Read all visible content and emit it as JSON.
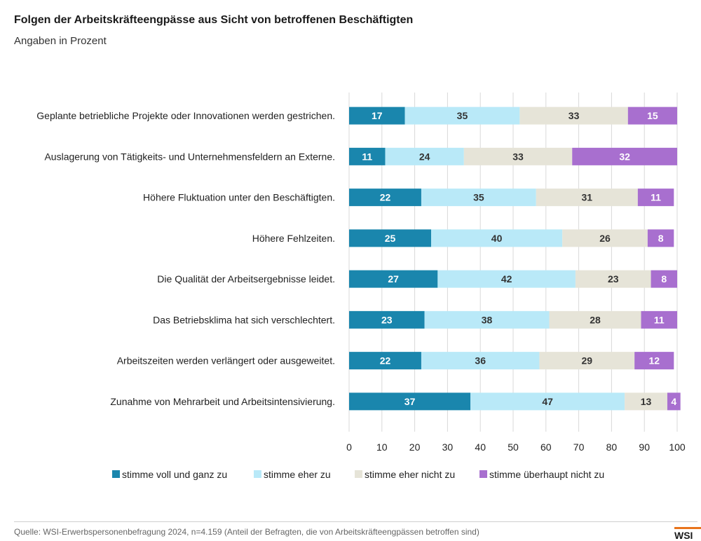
{
  "header": {
    "title": "Folgen der Arbeitskräfteengpässe aus Sicht von betroffenen Beschäftigten",
    "subtitle": "Angaben in Prozent"
  },
  "footer": {
    "source": "Quelle: WSI-Erwerbspersonenbefragung 2024, n=4.159 (Anteil der Befragten, die von Arbeitskräfteengpässen betroffen sind)",
    "logo_text": "WSI"
  },
  "colors": {
    "logo_accent": "#e8741c"
  },
  "chart_data": {
    "type": "bar",
    "orientation": "horizontal",
    "stacked": true,
    "title": "Folgen der Arbeitskräfteengpässe aus Sicht von betroffenen Beschäftigten",
    "subtitle": "Angaben in Prozent",
    "categories": [
      "Geplante betriebliche Projekte oder Innovationen werden gestrichen.",
      "Auslagerung von Tätigkeits- und Unternehmensfeldern an Externe.",
      "Höhere Fluktuation unter den Beschäftigten.",
      "Höhere Fehlzeiten.",
      "Die Qualität der Arbeitsergebnisse leidet.",
      "Das Betriebsklima hat sich verschlechtert.",
      "Arbeitszeiten werden verlängert oder ausgeweitet.",
      "Zunahme von Mehrarbeit und Arbeitsintensivierung."
    ],
    "series": [
      {
        "name": "stimme voll und ganz zu",
        "color": "#1a86ad",
        "label_color": "#ffffff",
        "values": [
          17,
          11,
          22,
          25,
          27,
          23,
          22,
          37
        ]
      },
      {
        "name": "stimme eher zu",
        "color": "#b9e9f8",
        "label_color": "#333333",
        "values": [
          35,
          24,
          35,
          40,
          42,
          38,
          36,
          47
        ]
      },
      {
        "name": "stimme eher nicht zu",
        "color": "#e6e4d8",
        "label_color": "#333333",
        "values": [
          33,
          33,
          31,
          26,
          23,
          28,
          29,
          13
        ]
      },
      {
        "name": "stimme überhaupt nicht zu",
        "color": "#a86fcf",
        "label_color": "#ffffff",
        "values": [
          15,
          32,
          11,
          8,
          8,
          11,
          12,
          4
        ]
      }
    ],
    "xlim": [
      0,
      100
    ],
    "xticks": [
      0,
      10,
      20,
      30,
      40,
      50,
      60,
      70,
      80,
      90,
      100
    ],
    "grid": true,
    "legend": "bottom"
  }
}
